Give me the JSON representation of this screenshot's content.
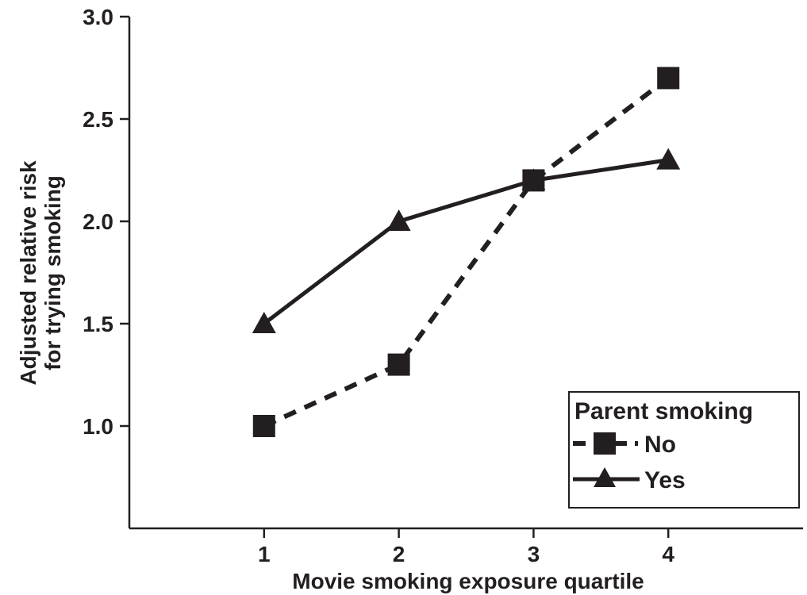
{
  "chart_data": {
    "type": "line",
    "xlabel": "Movie smoking exposure quartile",
    "ylabel_lines": [
      "Adjusted relative risk",
      "for trying smoking"
    ],
    "x": [
      1,
      2,
      3,
      4
    ],
    "x_tick_labels": [
      "1",
      "2",
      "3",
      "4"
    ],
    "xlim": [
      0,
      5
    ],
    "ylim": [
      0.5,
      3.0
    ],
    "y_ticks": [
      1.0,
      1.5,
      2.0,
      2.5,
      3.0
    ],
    "y_tick_labels": [
      "1.0",
      "1.5",
      "2.0",
      "2.5",
      "3.0"
    ],
    "grid": false,
    "legend": {
      "title": "Parent smoking",
      "placement": "bottom-right"
    },
    "series": [
      {
        "name": "No",
        "values": [
          1.0,
          1.3,
          2.2,
          2.7
        ],
        "marker": "square",
        "line_style": "dashed",
        "color": "#231f20"
      },
      {
        "name": "Yes",
        "values": [
          1.5,
          2.0,
          2.2,
          2.3
        ],
        "marker": "triangle",
        "line_style": "solid",
        "color": "#231f20"
      }
    ]
  }
}
